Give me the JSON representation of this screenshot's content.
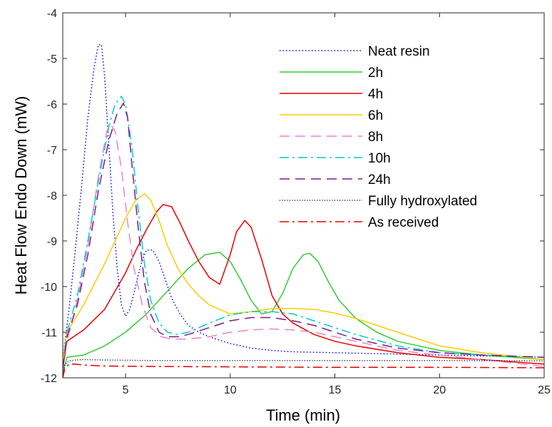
{
  "chart_data": {
    "type": "line",
    "title": "",
    "xlabel": "Time (min)",
    "ylabel": "Heat Flow Endo Down (mW)",
    "xlim": [
      2,
      25
    ],
    "ylim": [
      -12,
      -4
    ],
    "xticks": [
      5,
      10,
      15,
      20,
      25
    ],
    "yticks": [
      -12,
      -11,
      -10,
      -9,
      -8,
      -7,
      -6,
      -5,
      -4
    ],
    "grid": false,
    "legend_position": "top-right",
    "series": [
      {
        "name": "Neat resin",
        "color": "#0000ff",
        "dash": "dotted",
        "x": [
          2.0,
          2.3,
          2.6,
          2.9,
          3.2,
          3.5,
          3.7,
          3.85,
          4.0,
          4.2,
          4.4,
          4.6,
          4.8,
          5.0,
          5.2,
          5.4,
          5.6,
          5.8,
          6.0,
          6.3,
          6.6,
          6.9,
          7.2,
          7.6,
          8.0,
          8.5,
          9.0,
          10.0,
          11.0,
          12.0,
          13.0,
          15.0,
          17.0,
          20.0,
          22.0,
          25.0
        ],
        "y": [
          -11.6,
          -10.5,
          -9.2,
          -7.8,
          -6.3,
          -5.2,
          -4.7,
          -4.7,
          -5.4,
          -6.9,
          -8.4,
          -9.6,
          -10.4,
          -10.65,
          -10.5,
          -10.15,
          -9.75,
          -9.42,
          -9.2,
          -9.2,
          -9.45,
          -9.85,
          -10.25,
          -10.6,
          -10.85,
          -11.0,
          -11.1,
          -11.25,
          -11.35,
          -11.4,
          -11.43,
          -11.45,
          -11.47,
          -11.5,
          -11.52,
          -11.55
        ]
      },
      {
        "name": "2h",
        "color": "#33cc33",
        "dash": "solid",
        "x": [
          2.0,
          2.2,
          3.0,
          4.0,
          5.0,
          6.0,
          7.0,
          8.0,
          8.8,
          9.5,
          10.0,
          10.5,
          11.0,
          11.5,
          12.0,
          12.5,
          13.0,
          13.5,
          13.8,
          14.2,
          14.7,
          15.2,
          16.0,
          17.0,
          18.0,
          19.0,
          20.0,
          22.0,
          25.0
        ],
        "y": [
          -11.9,
          -11.55,
          -11.5,
          -11.3,
          -11.0,
          -10.6,
          -10.1,
          -9.6,
          -9.3,
          -9.25,
          -9.45,
          -9.85,
          -10.3,
          -10.6,
          -10.55,
          -10.15,
          -9.6,
          -9.3,
          -9.27,
          -9.45,
          -9.9,
          -10.3,
          -10.7,
          -11.0,
          -11.2,
          -11.3,
          -11.4,
          -11.5,
          -11.6
        ]
      },
      {
        "name": "4h",
        "color": "#e60000",
        "dash": "solid",
        "x": [
          2.0,
          2.2,
          3.0,
          4.0,
          5.0,
          5.5,
          6.0,
          6.5,
          6.8,
          7.2,
          7.6,
          8.0,
          8.5,
          9.0,
          9.5,
          10.0,
          10.3,
          10.7,
          11.0,
          11.5,
          12.0,
          12.5,
          13.0,
          14.0,
          15.0,
          16.0,
          18.0,
          20.0,
          22.0,
          25.0
        ],
        "y": [
          -11.8,
          -11.2,
          -10.95,
          -10.5,
          -9.7,
          -9.2,
          -8.75,
          -8.35,
          -8.2,
          -8.25,
          -8.6,
          -9.0,
          -9.45,
          -9.8,
          -9.95,
          -9.3,
          -8.8,
          -8.55,
          -8.7,
          -9.4,
          -10.2,
          -10.6,
          -10.8,
          -11.05,
          -11.2,
          -11.3,
          -11.45,
          -11.55,
          -11.6,
          -11.7
        ]
      },
      {
        "name": "6h",
        "color": "#ffcc00",
        "dash": "solid",
        "x": [
          2.0,
          2.2,
          3.0,
          4.0,
          4.5,
          5.0,
          5.5,
          5.9,
          6.2,
          6.6,
          7.0,
          7.5,
          8.0,
          8.5,
          9.0,
          10.0,
          11.0,
          12.0,
          13.0,
          14.0,
          15.0,
          16.0,
          17.0,
          18.0,
          19.0,
          20.0,
          22.0,
          25.0
        ],
        "y": [
          -11.6,
          -11.0,
          -10.4,
          -9.5,
          -9.0,
          -8.5,
          -8.1,
          -7.97,
          -8.1,
          -8.55,
          -9.1,
          -9.6,
          -9.95,
          -10.2,
          -10.4,
          -10.6,
          -10.55,
          -10.48,
          -10.48,
          -10.5,
          -10.58,
          -10.7,
          -10.85,
          -11.0,
          -11.15,
          -11.3,
          -11.45,
          -11.6
        ]
      },
      {
        "name": "8h",
        "color": "#ee82c8",
        "dash": "dashed",
        "x": [
          2.0,
          2.2,
          2.7,
          3.2,
          3.7,
          4.1,
          4.3,
          4.5,
          4.8,
          5.1,
          5.4,
          5.8,
          6.2,
          6.7,
          7.2,
          8.0,
          9.0,
          10.0,
          11.0,
          12.0,
          13.0,
          14.0,
          15.0,
          16.0,
          18.0,
          20.0,
          22.0,
          25.0
        ],
        "y": [
          -11.8,
          -11.2,
          -10.3,
          -9.1,
          -7.6,
          -6.6,
          -6.45,
          -6.6,
          -7.4,
          -8.6,
          -9.6,
          -10.4,
          -10.9,
          -11.1,
          -11.15,
          -11.15,
          -11.1,
          -11.0,
          -10.95,
          -10.93,
          -10.95,
          -11.0,
          -11.1,
          -11.2,
          -11.4,
          -11.5,
          -11.6,
          -11.75
        ]
      },
      {
        "name": "10h",
        "color": "#00cccc",
        "dash": "dashdot",
        "x": [
          2.0,
          2.2,
          2.7,
          3.2,
          3.7,
          4.2,
          4.5,
          4.8,
          5.0,
          5.3,
          5.6,
          5.9,
          6.2,
          6.6,
          7.0,
          7.5,
          8.0,
          9.0,
          10.0,
          11.0,
          12.0,
          13.0,
          14.0,
          15.0,
          16.0,
          18.0,
          20.0,
          22.0,
          25.0
        ],
        "y": [
          -11.8,
          -11.0,
          -10.2,
          -9.0,
          -7.7,
          -6.5,
          -6.0,
          -5.83,
          -6.0,
          -6.9,
          -8.3,
          -9.5,
          -10.3,
          -10.8,
          -11.0,
          -11.05,
          -11.0,
          -10.8,
          -10.62,
          -10.55,
          -10.55,
          -10.6,
          -10.75,
          -10.9,
          -11.05,
          -11.3,
          -11.45,
          -11.5,
          -11.55
        ]
      },
      {
        "name": "24h",
        "color": "#7a1a8c",
        "dash": "dashed",
        "x": [
          2.0,
          2.2,
          2.7,
          3.2,
          3.7,
          4.2,
          4.6,
          4.9,
          5.1,
          5.3,
          5.6,
          5.9,
          6.2,
          6.6,
          7.0,
          7.5,
          8.0,
          9.0,
          10.0,
          11.0,
          12.0,
          13.0,
          14.0,
          15.0,
          16.0,
          18.0,
          20.0,
          22.0,
          25.0
        ],
        "y": [
          -11.8,
          -11.1,
          -10.4,
          -9.3,
          -7.9,
          -6.8,
          -6.2,
          -5.98,
          -6.3,
          -7.3,
          -8.7,
          -9.9,
          -10.6,
          -11.0,
          -11.1,
          -11.1,
          -11.05,
          -10.9,
          -10.75,
          -10.68,
          -10.68,
          -10.75,
          -10.85,
          -11.0,
          -11.15,
          -11.35,
          -11.45,
          -11.5,
          -11.55
        ]
      },
      {
        "name": "Fully hydroxylated",
        "color": "#000000",
        "dash": "densedot",
        "x": [
          2.0,
          2.1,
          2.3,
          2.6,
          3.0,
          4.0,
          6.0,
          10.0,
          15.0,
          20.0,
          25.0
        ],
        "y": [
          -11.95,
          -11.72,
          -11.63,
          -11.61,
          -11.6,
          -11.61,
          -11.62,
          -11.62,
          -11.62,
          -11.62,
          -11.63
        ]
      },
      {
        "name": "As received",
        "color": "#e60000",
        "dash": "dashdot",
        "x": [
          2.0,
          2.1,
          2.3,
          2.6,
          3.0,
          4.0,
          6.0,
          10.0,
          15.0,
          20.0,
          25.0
        ],
        "y": [
          -12.0,
          -11.8,
          -11.7,
          -11.7,
          -11.72,
          -11.74,
          -11.75,
          -11.76,
          -11.77,
          -11.77,
          -11.78
        ]
      }
    ]
  }
}
